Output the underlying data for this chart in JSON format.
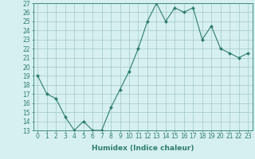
{
  "x": [
    0,
    1,
    2,
    3,
    4,
    5,
    6,
    7,
    8,
    9,
    10,
    11,
    12,
    13,
    14,
    15,
    16,
    17,
    18,
    19,
    20,
    21,
    22,
    23
  ],
  "y": [
    19,
    17,
    16.5,
    14.5,
    13,
    14,
    13,
    13,
    15.5,
    17.5,
    19.5,
    22,
    25,
    27,
    25,
    26.5,
    26,
    26.5,
    23,
    24.5,
    22,
    21.5,
    21,
    21.5
  ],
  "line_color": "#2e7d6e",
  "marker": "D",
  "marker_size": 2,
  "bg_color": "#d6f0ef",
  "grid_color": "#a0c8c4",
  "xlabel": "Humidex (Indice chaleur)",
  "ylim": [
    13,
    27
  ],
  "xlim_left": -0.5,
  "xlim_right": 23.5,
  "yticks": [
    13,
    14,
    15,
    16,
    17,
    18,
    19,
    20,
    21,
    22,
    23,
    24,
    25,
    26,
    27
  ],
  "xticks": [
    0,
    1,
    2,
    3,
    4,
    5,
    6,
    7,
    8,
    9,
    10,
    11,
    12,
    13,
    14,
    15,
    16,
    17,
    18,
    19,
    20,
    21,
    22,
    23
  ],
  "tick_color": "#2e7d6e",
  "label_color": "#2e7d6e",
  "axis_color": "#2e7d6e",
  "font_size_ticks": 5.5,
  "font_size_label": 6.5
}
